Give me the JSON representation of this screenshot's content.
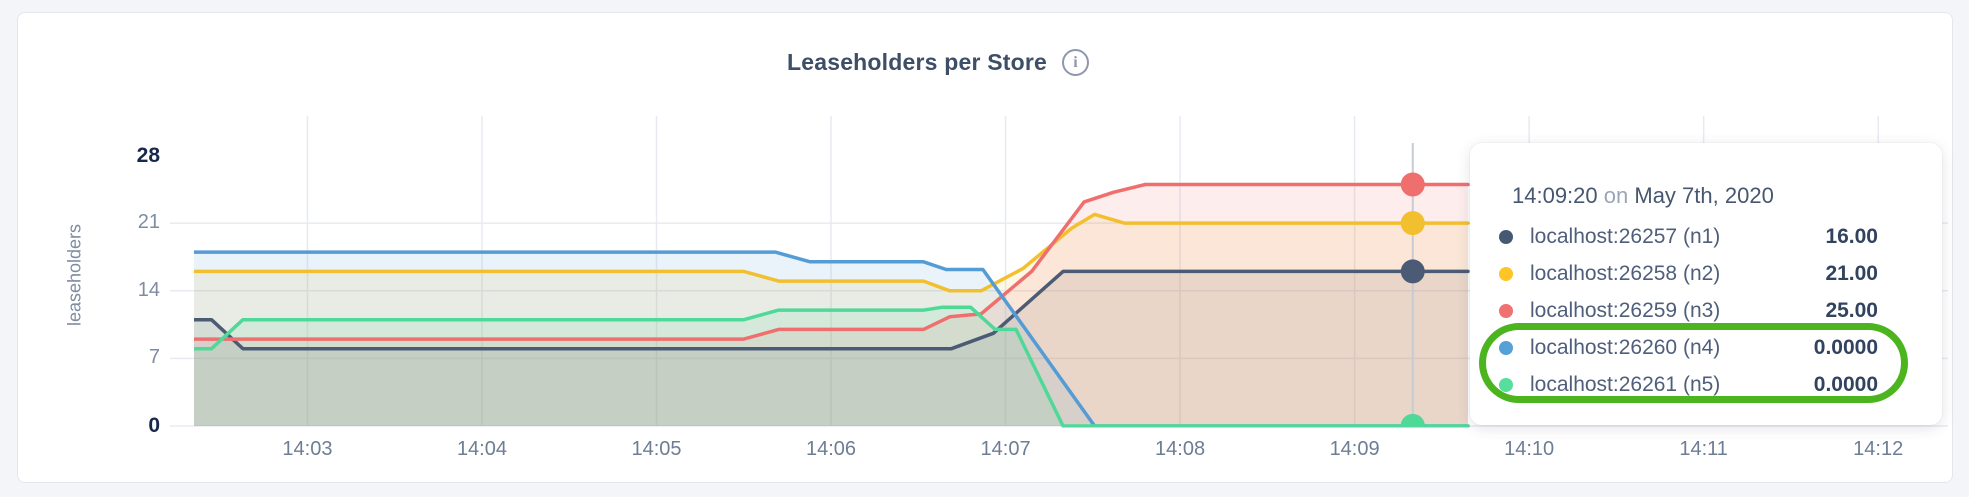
{
  "header": {
    "title": "Leaseholders per Store",
    "info_icon": "i"
  },
  "chart_data": {
    "type": "area",
    "title": "Leaseholders per Store",
    "xlabel": "",
    "ylabel": "leaseholders",
    "ylim": [
      0,
      28
    ],
    "grid": true,
    "x_domain_minutes_after_1400": [
      2.35,
      12.4
    ],
    "x_ticks": [
      {
        "minute": 3,
        "label": "14:03"
      },
      {
        "minute": 4,
        "label": "14:04"
      },
      {
        "minute": 5,
        "label": "14:05"
      },
      {
        "minute": 6,
        "label": "14:06"
      },
      {
        "minute": 7,
        "label": "14:07"
      },
      {
        "minute": 8,
        "label": "14:08"
      },
      {
        "minute": 9,
        "label": "14:09"
      },
      {
        "minute": 10,
        "label": "14:10"
      },
      {
        "minute": 11,
        "label": "14:11"
      },
      {
        "minute": 12,
        "label": "14:12"
      }
    ],
    "y_ticks": [
      {
        "value": 0,
        "label": "0",
        "emphasis": true,
        "gridline": true
      },
      {
        "value": 7,
        "label": "7",
        "emphasis": false,
        "gridline": true
      },
      {
        "value": 14,
        "label": "14",
        "emphasis": false,
        "gridline": true
      },
      {
        "value": 21,
        "label": "21",
        "emphasis": false,
        "gridline": true
      },
      {
        "value": 28,
        "label": "28",
        "emphasis": true,
        "gridline": false
      }
    ],
    "series": [
      {
        "name": "localhost:26257 (n1)",
        "color": "#4C5B75",
        "points": [
          [
            2.35,
            11
          ],
          [
            2.45,
            11
          ],
          [
            2.63,
            8
          ],
          [
            6.69,
            8
          ],
          [
            6.93,
            9.6
          ],
          [
            7.33,
            16
          ],
          [
            9.65,
            16
          ]
        ]
      },
      {
        "name": "localhost:26258 (n2)",
        "color": "#F2C02E",
        "points": [
          [
            2.35,
            16
          ],
          [
            5.5,
            16
          ],
          [
            5.7,
            15
          ],
          [
            6.53,
            15
          ],
          [
            6.68,
            14
          ],
          [
            6.86,
            14
          ],
          [
            7.1,
            16.3
          ],
          [
            7.38,
            20.5
          ],
          [
            7.51,
            21.9
          ],
          [
            7.68,
            21
          ],
          [
            9.65,
            21
          ]
        ]
      },
      {
        "name": "localhost:26259 (n3)",
        "color": "#EF6F6F",
        "points": [
          [
            2.35,
            9
          ],
          [
            5.5,
            9
          ],
          [
            5.7,
            10
          ],
          [
            6.53,
            10
          ],
          [
            6.68,
            11.3
          ],
          [
            6.86,
            11.6
          ],
          [
            7.15,
            16
          ],
          [
            7.45,
            23.2
          ],
          [
            7.62,
            24.2
          ],
          [
            7.8,
            25
          ],
          [
            9.65,
            25
          ]
        ]
      },
      {
        "name": "localhost:26260 (n4)",
        "color": "#549CD5",
        "points": [
          [
            2.35,
            18
          ],
          [
            5.68,
            18
          ],
          [
            5.88,
            17
          ],
          [
            6.53,
            17
          ],
          [
            6.66,
            16.2
          ],
          [
            6.87,
            16.2
          ],
          [
            7.51,
            0
          ],
          [
            9.65,
            0
          ]
        ]
      },
      {
        "name": "localhost:26261 (n5)",
        "color": "#4FD998",
        "points": [
          [
            2.35,
            8
          ],
          [
            2.45,
            8
          ],
          [
            2.63,
            11
          ],
          [
            5.5,
            11
          ],
          [
            5.7,
            12
          ],
          [
            6.53,
            12
          ],
          [
            6.64,
            12.3
          ],
          [
            6.8,
            12.3
          ],
          [
            6.94,
            10
          ],
          [
            7.06,
            10
          ],
          [
            7.33,
            0
          ],
          [
            9.65,
            0
          ]
        ]
      }
    ],
    "hover": {
      "minute": 9.3333,
      "time_label": "14:09:20",
      "marker_values": [
        16,
        21,
        25,
        0,
        0
      ]
    },
    "legend_position": "tooltip-only"
  },
  "tooltip": {
    "time": "14:09:20",
    "connector": "on",
    "date": "May 7th, 2020",
    "rows": [
      {
        "label": "localhost:26257 (n1)",
        "value": "16.00",
        "color": "#475872",
        "highlighted": false
      },
      {
        "label": "localhost:26258 (n2)",
        "value": "21.00",
        "color": "#FFC426",
        "highlighted": false
      },
      {
        "label": "localhost:26259 (n3)",
        "value": "25.00",
        "color": "#F0716E",
        "highlighted": false
      },
      {
        "label": "localhost:26260 (n4)",
        "value": "0.0000",
        "color": "#56A0D8",
        "highlighted": true
      },
      {
        "label": "localhost:26261 (n5)",
        "value": "0.0000",
        "color": "#55DE9C",
        "highlighted": true
      }
    ]
  },
  "annotation": {
    "shape": "stadium-outline",
    "color": "#4BB41E",
    "meaning": "highlights n4 and n5 zero values"
  },
  "colors": {
    "page_bg": "#F4F5F9",
    "card_bg": "#FFFFFF",
    "grid": "#E7EBF1",
    "hover_line": "#C7CCD4"
  }
}
